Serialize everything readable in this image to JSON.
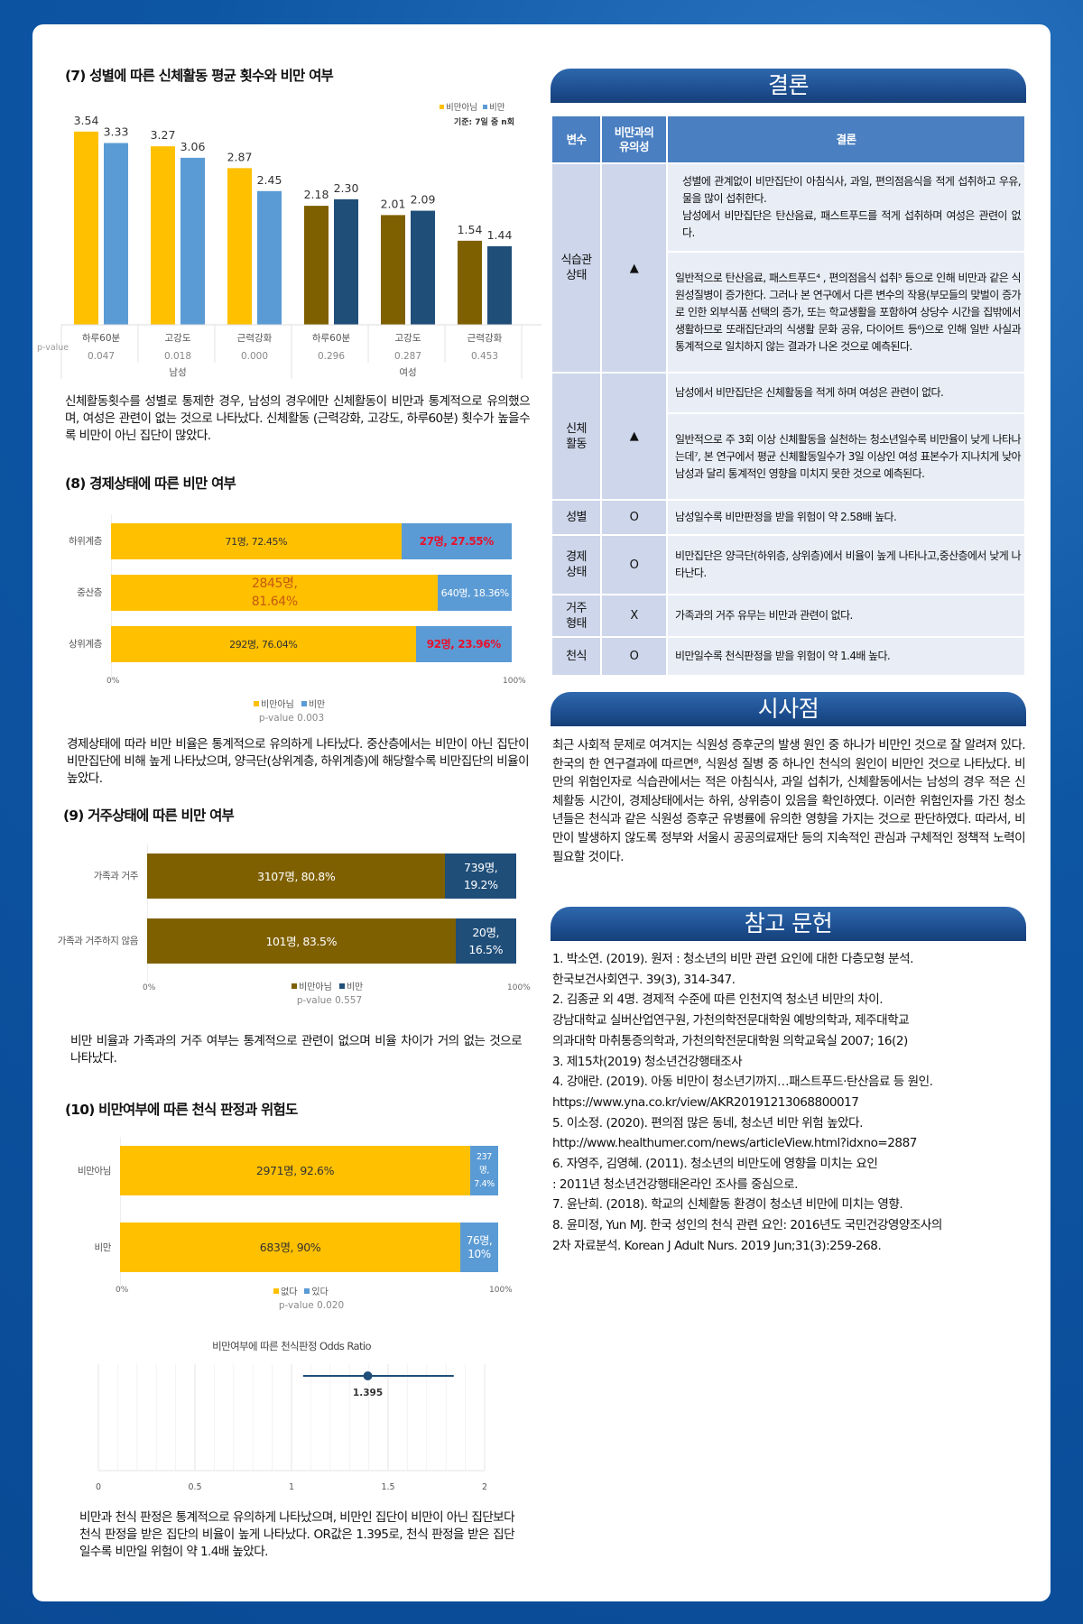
{
  "sections": {
    "s7": {
      "title": "(7) 성별에 따른 신체활동 평균 횟수와 비만 여부",
      "paragraph": "신체활동횟수를 성별로 통제한 경우, 남성의 경우에만 신체활동이 비만과 통계적으로 유의했으며, 여성은 관련이 없는 것으로 나타났다. 신체활동 (근력강화, 고강도, 하루60분) 횟수가 높을수록 비만이 아닌 집단이 많았다."
    },
    "s8": {
      "title": "(8) 경제상태에 따른 비만 여부",
      "paragraph": "경제상태에 따라 비만 비율은 통계적으로 유의하게 나타났다. 중산층에서는 비만이 아닌 집단이 비만집단에 비해 높게 나타났으며, 양극단(상위계층, 하위계층)에 해당할수록 비만집단의 비율이 높았다."
    },
    "s9": {
      "title": "(9) 거주상태에 따른 비만 여부",
      "paragraph": "비만 비율과 가족과의 거주 여부는 통계적으로 관련이 없으며 비율 차이가 거의 없는 것으로 나타났다."
    },
    "s10": {
      "title": "(10) 비만여부에 따른 천식 판정과 위험도",
      "paragraph": "비만과 천식 판정은 통계적으로 유의하게 나타났으며, 비만인 집단이 비만이 아닌 집단보다 천식 판정을 받은 집단의 비율이 높게 나타났다. OR값은 1.395로, 천식 판정을 받은 집단일수록 비만일 위험이 약 1.4배 높았다."
    }
  },
  "chart_data": [
    {
      "type": "bar",
      "title": "",
      "note": "기준: 7일 중 n회",
      "legend": [
        "비만아님",
        "비만"
      ],
      "legend_placement": "top-right",
      "row_header": "p-value",
      "groups": [
        {
          "name": "남성",
          "categories": [
            "하루60분",
            "고강도",
            "근력강화"
          ],
          "p_values": [
            "0.047",
            "0.018",
            "0.000"
          ],
          "series": [
            {
              "name": "비만아님",
              "values": [
                3.54,
                3.27,
                2.87
              ],
              "color": "#FFC000"
            },
            {
              "name": "비만",
              "values": [
                3.33,
                3.06,
                2.45
              ],
              "color": "#5B9BD5"
            }
          ]
        },
        {
          "name": "여성",
          "categories": [
            "하루60분",
            "고강도",
            "근력강화"
          ],
          "p_values": [
            "0.296",
            "0.287",
            "0.453"
          ],
          "series": [
            {
              "name": "비만아님",
              "values": [
                2.18,
                2.01,
                1.54
              ],
              "color": "#7F6000"
            },
            {
              "name": "비만",
              "values": [
                2.3,
                2.09,
                1.44
              ],
              "color": "#1F4E79"
            }
          ]
        }
      ],
      "value_labels": [
        "3.54",
        "3.33",
        "3.27",
        "3.06",
        "2.87",
        "2.45",
        "2.18",
        "2.30",
        "2.01",
        "2.09",
        "1.54",
        "1.44"
      ]
    },
    {
      "type": "bar",
      "stacked": "100%",
      "orientation": "horizontal",
      "categories": [
        "하위계층",
        "중산층",
        "상위계층"
      ],
      "series": [
        {
          "name": "비만아님",
          "values": [
            72.45,
            81.64,
            76.04
          ],
          "labels": [
            "71명, 72.45%",
            "2845명, 81.64%",
            "292명, 76.04%"
          ],
          "color": "#FFC000"
        },
        {
          "name": "비만",
          "values": [
            27.55,
            18.36,
            23.96
          ],
          "labels": [
            "27명, 27.55%",
            "640명, 18.36%",
            "92명, 23.96%"
          ],
          "color": "#5B9BD5"
        }
      ],
      "label_colors": [
        [
          "#333333",
          "#E8112D"
        ],
        [
          "#C55A11",
          "#FFFFFF"
        ],
        [
          "#333333",
          "#E8112D"
        ]
      ],
      "xticks": [
        "0%",
        "100%"
      ],
      "xlim": [
        0,
        100
      ],
      "legend_placement": "bottom",
      "p_value": "p-value 0.003"
    },
    {
      "type": "bar",
      "stacked": "100%",
      "orientation": "horizontal",
      "categories": [
        "가족과 거주",
        "가족과 거주하지 않음"
      ],
      "series": [
        {
          "name": "비만아님",
          "values": [
            80.8,
            83.5
          ],
          "labels": [
            "3107명, 80.8%",
            "101명, 83.5%"
          ],
          "color": "#7F6000"
        },
        {
          "name": "비만",
          "values": [
            19.2,
            16.5
          ],
          "labels": [
            "739명, 19.2%",
            "20명, 16.5%"
          ],
          "color": "#1F4E79"
        }
      ],
      "label_colors": [
        [
          "#FFFFFF",
          "#FFFFFF"
        ],
        [
          "#FFFFFF",
          "#FFFFFF"
        ]
      ],
      "xticks": [
        "0%",
        "100%"
      ],
      "xlim": [
        0,
        100
      ],
      "legend_placement": "bottom",
      "p_value": "p-value 0.557"
    },
    {
      "type": "bar",
      "stacked": "100%",
      "orientation": "horizontal",
      "categories": [
        "비만아님",
        "비만"
      ],
      "series": [
        {
          "name": "없다",
          "values": [
            92.6,
            90
          ],
          "labels": [
            "2971명, 92.6%",
            "683명, 90%"
          ],
          "color": "#FFC000"
        },
        {
          "name": "있다",
          "values": [
            7.4,
            10
          ],
          "labels": [
            "237명, 7.4%",
            "76명, 10%"
          ],
          "color": "#5B9BD5"
        }
      ],
      "label_colors": [
        [
          "#333333",
          "#FFFFFF"
        ],
        [
          "#333333",
          "#FFFFFF"
        ]
      ],
      "xticks": [
        "0%",
        "100%"
      ],
      "xlim": [
        0,
        100
      ],
      "legend_placement": "bottom",
      "p_value": "p-value 0.020"
    },
    {
      "type": "scatter",
      "title": "비만여부에 따른 천식판정 Odds Ratio",
      "point": {
        "value": 1.395,
        "ci_low": 1.06,
        "ci_high": 1.84,
        "label": "1.395",
        "color": "#1F4E79"
      },
      "xlim": [
        0,
        2
      ],
      "xticks": [
        "0",
        "0.5",
        "1",
        "1.5",
        "2"
      ],
      "grid": true
    }
  ],
  "conclusion": {
    "title": "결론",
    "headers": [
      "변수",
      "비만과의 유의성",
      "결론"
    ],
    "rows": [
      {
        "variable": "식습관 상태",
        "significance": "▲",
        "texts": [
          "성별에 관계없이 비만집단이 아침식사, 과일, 편의점음식을 적게 섭취하고 우유, 물을 많이 섭취한다.\n남성에서 비만집단은 탄산음료, 패스트푸드를 적게 섭취하며 여성은 관련이 없다.",
          "일반적으로 탄산음료, 패스트푸드⁴ , 편의점음식 섭취⁵ 등으로 인해 비만과 같은 식원성질병이 증가한다. 그러나 본 연구에서 다른 변수의 작용(부모들의 맞벌이 증가로 인한 외부식품 선택의 증가, 또는 학교생활을 포함하여 상당수 시간을 집밖에서 생활하므로 또래집단과의 식생활 문화 공유, 다이어트 등⁶)으로 인해 일반 사실과 통계적으로 일치하지 않는 결과가 나온 것으로 예측된다."
        ]
      },
      {
        "variable": "신체 활동",
        "significance": "▲",
        "texts": [
          "남성에서 비만집단은 신체활동을 적게 하며 여성은 관련이 없다.",
          "일반적으로 주 3회 이상 신체활동을 실천하는 청소년일수록 비만율이 낮게 나타나는데⁷, 본 연구에서 평균 신체활동일수가 3일 이상인 여성 표본수가 지나치게 낮아 남성과 달리 통계적인 영향을 미치지 못한 것으로 예측된다."
        ]
      },
      {
        "variable": "성별",
        "significance": "O",
        "texts": [
          "남성일수록 비만판정을 받을 위험이 약 2.58배 높다."
        ]
      },
      {
        "variable": "경제 상태",
        "significance": "O",
        "texts": [
          "비만집단은 양극단(하위층, 상위층)에서 비율이 높게 나타나고,중산층에서 낮게 나타난다."
        ]
      },
      {
        "variable": "거주 형태",
        "significance": "X",
        "texts": [
          "가족과의 거주 유무는 비만과 관련이 없다."
        ]
      },
      {
        "variable": "천식",
        "significance": "O",
        "texts": [
          "비만일수록 천식판정을 받을 위험이 약 1.4배 높다."
        ]
      }
    ]
  },
  "implications": {
    "title": "시사점",
    "text": "최근 사회적 문제로 여겨지는 식원성 증후군의 발생 원인 중 하나가 비만인 것으로 잘 알려져 있다. 한국의 한 연구결과에 따르면⁸, 식원성 질병 중 하나인 천식의 원인이 비만인 것으로 나타났다. 비만의 위험인자로 식습관에서는 적은 아침식사, 과일 섭취가, 신체활동에서는 남성의 경우 적은 신체활동 시간이, 경제상태에서는 하위, 상위층이 있음을 확인하였다. 이러한 위험인자를 가진 청소년들은 천식과 같은 식원성 증후군 유병률에 유의한 영향을 가지는 것으로 판단하였다. 따라서, 비만이 발생하지 않도록 정부와 서울시 공공의료재단 등의 지속적인 관심과 구체적인 정책적 노력이 필요할 것이다."
  },
  "references": {
    "title": "참고 문헌",
    "lines": [
      "1. 박소연. (2019). 원저 : 청소년의 비만 관련 요인에 대한 다층모형 분석.",
      "한국보건사회연구. 39(3), 314-347.",
      "2. 김종균 외 4명. 경제적 수준에 따른 인천지역 청소년 비만의 차이.",
      "강남대학교 실버산업연구원, 가천의학전문대학원 예방의학과, 제주대학교",
      "의과대학 마취통증의학과, 가천의학전문대학원 의학교육실 2007; 16(2)",
      "3. 제15차(2019) 청소년건강행태조사",
      "4. 강애란. (2019). 아동 비만이 청소년기까지…패스트푸드·탄산음료 등 원인.",
      "https://www.yna.co.kr/view/AKR20191213068800017",
      "5. 이소정. (2020). 편의점 많은 동네, 청소년 비만 위험 높았다.",
      "http://www.healthumer.com/news/articleView.html?idxno=2887",
      "6. 자영주, 김영혜. (2011). 청소년의 비만도에 영향을 미치는 요인",
      ": 2011년 청소년건강행태온라인 조사를 중심으로.",
      "7. 윤난희. (2018). 학교의 신체활동 환경이 청소년 비만에 미치는 영향.",
      "8. 윤미정, Yun MJ. 한국 성인의 천식 관련 요인: 2016년도 국민건강영양조사의",
      "2차 자료분석.   Korean J Adult Nurs. 2019 Jun;31(3):259-268."
    ]
  }
}
